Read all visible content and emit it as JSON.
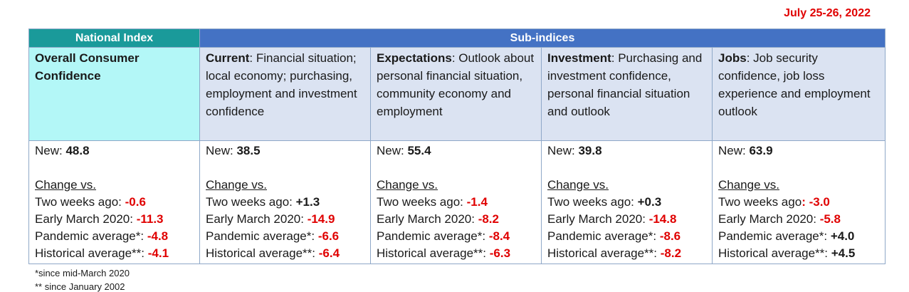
{
  "date": "July 25-26, 2022",
  "header": {
    "national": "National Index",
    "sub": "Sub-indices"
  },
  "columns": [
    {
      "title": "Overall Consumer Confidence",
      "desc": "",
      "new_label": "New: ",
      "new": "48.8",
      "change_label": "Change vs.",
      "rows": [
        {
          "label": "Two weeks ago: ",
          "value": "-0.6"
        },
        {
          "label": "Early March 2020:  ",
          "value": "-11.3"
        },
        {
          "label": "Pandemic average*: ",
          "value": "-4.8"
        },
        {
          "label": "Historical average**: ",
          "value": "-4.1"
        }
      ]
    },
    {
      "title": "Current",
      "desc": ":  Financial situation; local economy; purchasing, employment and investment confidence",
      "new_label": "New: ",
      "new": "38.5",
      "change_label": "Change vs.",
      "rows": [
        {
          "label": "Two weeks ago: ",
          "value": "+1.3"
        },
        {
          "label": "Early March 2020:  ",
          "value": "-14.9"
        },
        {
          "label": "Pandemic average*:  ",
          "value": "-6.6"
        },
        {
          "label": "Historical average**: ",
          "value": "-6.4"
        }
      ]
    },
    {
      "title": "Expectations",
      "desc": ":  Outlook about personal financial situation, community economy and employment",
      "new_label": "New: ",
      "new": "55.4",
      "change_label": "Change vs.",
      "rows": [
        {
          "label": "Two weeks ago: ",
          "value": "-1.4"
        },
        {
          "label": "Early March 2020:  ",
          "value": "-8.2"
        },
        {
          "label": "Pandemic average*: ",
          "value": "-8.4"
        },
        {
          "label": "Historical average**: ",
          "value": "-6.3"
        }
      ]
    },
    {
      "title": "Investment",
      "desc": ": Purchasing and investment confidence, personal financial situation and outlook",
      "new_label": "New: ",
      "new": "39.8",
      "change_label": "Change vs.",
      "rows": [
        {
          "label": "Two weeks ago: ",
          "value": "+0.3"
        },
        {
          "label": "Early March 2020:  ",
          "value": "-14.8"
        },
        {
          "label": "Pandemic average*: ",
          "value": "-8.6"
        },
        {
          "label": "Historical average**: ",
          "value": "-8.2"
        }
      ]
    },
    {
      "title": "Jobs",
      "desc": ": Job security confidence, job loss experience  and employment outlook",
      "new_label": "New: ",
      "new": "63.9",
      "change_label": "Change vs.",
      "rows": [
        {
          "label": "Two weeks ago",
          "value": ": -3.0"
        },
        {
          "label": "Early March 2020:  ",
          "value": "-5.8"
        },
        {
          "label": "Pandemic average*: ",
          "value": "+4.0"
        },
        {
          "label": "Historical average**: ",
          "value": "+4.5"
        }
      ]
    }
  ],
  "footnotes": [
    "*since mid-March 2020",
    "** since January 2002"
  ],
  "colors": {
    "negative": "#e00000",
    "national_header": "#1a9a9a",
    "sub_header": "#4472c4",
    "national_bg": "#b3f7f7",
    "sub_bg": "#dbe3f2"
  }
}
